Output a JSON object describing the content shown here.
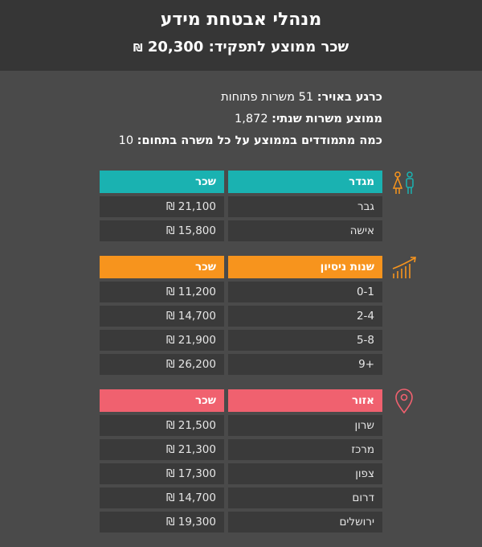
{
  "header": {
    "title": "מנהלי אבטחת מידע",
    "subtitle_label": "שכר ממוצע לתפקיד:",
    "subtitle_value": "20,300",
    "currency": "₪"
  },
  "stats": [
    {
      "label": "כרגע באויר:",
      "value": "51 משרות פתוחות"
    },
    {
      "label": "ממוצע משרות שנתי:",
      "value": "1,872"
    },
    {
      "label": "כמה מתמודדים בממוצע על כל משרה בתחום:",
      "value": "10"
    }
  ],
  "colors": {
    "teal": "#1ab2b1",
    "orange": "#f7941d",
    "pink": "#f0616f"
  },
  "gender": {
    "icon": "gender-icon",
    "header_category": "מגדר",
    "header_salary": "שכר",
    "rows": [
      {
        "category": "גבר",
        "salary": "21,100 ₪"
      },
      {
        "category": "אישה",
        "salary": "15,800 ₪"
      }
    ]
  },
  "experience": {
    "icon": "growth-chart-icon",
    "header_category": "שנות ניסיון",
    "header_salary": "שכר",
    "rows": [
      {
        "category": "0-1",
        "salary": "11,200 ₪"
      },
      {
        "category": "2-4",
        "salary": "14,700 ₪"
      },
      {
        "category": "5-8",
        "salary": "21,900 ₪"
      },
      {
        "category": "+9",
        "salary": "26,200 ₪"
      }
    ]
  },
  "region": {
    "icon": "location-pin-icon",
    "header_category": "אזור",
    "header_salary": "שכר",
    "rows": [
      {
        "category": "שרון",
        "salary": "21,500 ₪"
      },
      {
        "category": "מרכז",
        "salary": "21,300 ₪"
      },
      {
        "category": "צפון",
        "salary": "17,300 ₪"
      },
      {
        "category": "דרום",
        "salary": "14,700 ₪"
      },
      {
        "category": "ירושלים",
        "salary": "19,300 ₪"
      }
    ]
  }
}
